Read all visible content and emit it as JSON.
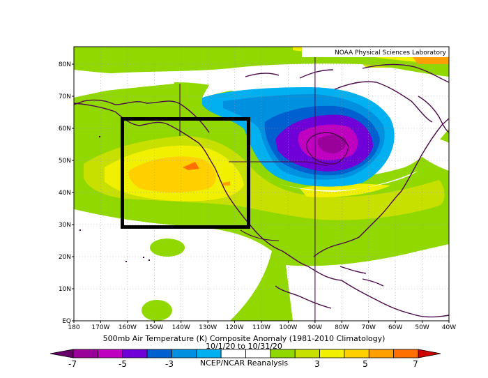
{
  "attribution": "NOAA Physical Sciences Laboratory",
  "title_line1": "500mb Air Temperature (K) Composite Anomaly (1981-2010 Climatology)",
  "title_line2": "10/1/20 to 10/31/20",
  "title_line3": "NCEP/NCAR Reanalysis",
  "lon_ticks": [
    "180",
    "170W",
    "160W",
    "150W",
    "140W",
    "130W",
    "120W",
    "110W",
    "100W",
    "90W",
    "80W",
    "70W",
    "60W",
    "50W",
    "40W"
  ],
  "lat_ticks": [
    "EQ",
    "10N",
    "20N",
    "30N",
    "40N",
    "50N",
    "60N",
    "70N",
    "80N"
  ],
  "colorbar": {
    "labels": [
      "-7",
      "-5",
      "-3",
      "3",
      "5",
      "7"
    ],
    "colors": [
      "#6a006a",
      "#9a009a",
      "#c000c0",
      "#7000d8",
      "#0060d0",
      "#0090e0",
      "#00b0f0",
      "#ffffff",
      "#ffffff",
      "#90d800",
      "#c8e000",
      "#f0f000",
      "#ffd000",
      "#ffa000",
      "#ff7000",
      "#d00000"
    ]
  },
  "highlight_box": {
    "lon_min": -162,
    "lon_max": -115,
    "lat_min": 29,
    "lat_max": 63
  }
}
